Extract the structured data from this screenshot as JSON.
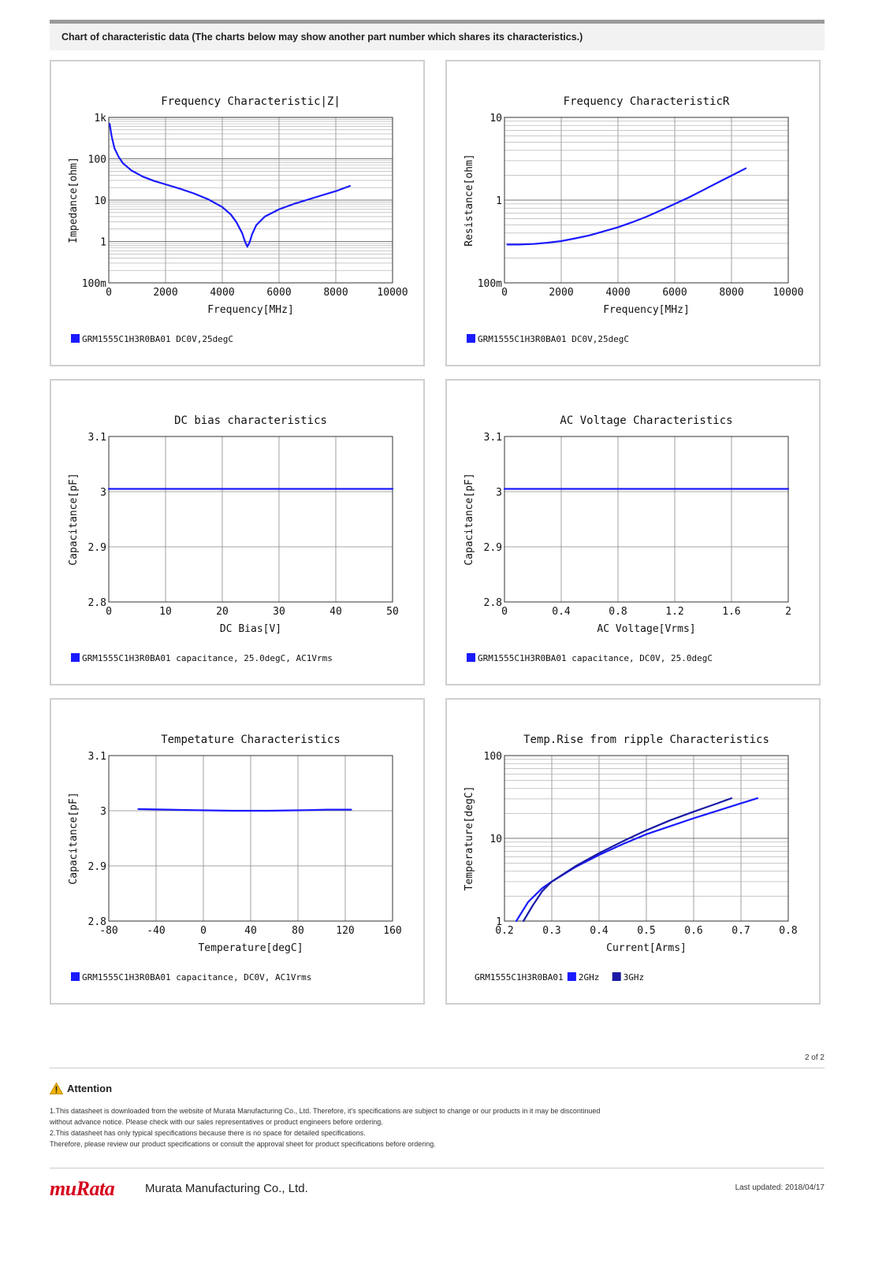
{
  "header": {
    "title": "Chart of characteristic data (The charts below may show another part number which shares its characteristics.)"
  },
  "colors": {
    "series1": "#1a1aff",
    "series2": "#1a1aa6",
    "border": "#cfcfcf",
    "logo": "#d6001c"
  },
  "chart_data": [
    {
      "type": "line",
      "title": "Frequency  Characteristic|Z|",
      "xlabel": "Frequency[MHz]",
      "ylabel": "Impedance[ohm]",
      "xlim": [
        0,
        10000
      ],
      "ylim": [
        0.1,
        1000
      ],
      "yscale": "log",
      "xticks": [
        0,
        2000,
        4000,
        6000,
        8000,
        10000
      ],
      "xtick_labels": [
        "0",
        "2000",
        "4000",
        "6000",
        "8000",
        "10000"
      ],
      "yticks": [
        0.1,
        1,
        10,
        100,
        1000
      ],
      "ytick_labels": [
        "100m",
        "1",
        "10",
        "100",
        "1k"
      ],
      "grid": true,
      "legend": [
        {
          "label": "GRM1555C1H3R0BA01 DC0V,25degC",
          "color": "#1a1aff"
        }
      ],
      "series": [
        {
          "color": "#1a1aff",
          "points": [
            [
              30,
              700
            ],
            [
              100,
              350
            ],
            [
              200,
              180
            ],
            [
              350,
              110
            ],
            [
              500,
              78
            ],
            [
              800,
              52
            ],
            [
              1200,
              37
            ],
            [
              1600,
              29
            ],
            [
              2000,
              24
            ],
            [
              2500,
              19
            ],
            [
              3000,
              14.5
            ],
            [
              3500,
              10.5
            ],
            [
              4000,
              6.8
            ],
            [
              4300,
              4.5
            ],
            [
              4500,
              2.9
            ],
            [
              4700,
              1.6
            ],
            [
              4800,
              1.0
            ],
            [
              4880,
              0.75
            ],
            [
              4960,
              0.95
            ],
            [
              5050,
              1.5
            ],
            [
              5200,
              2.5
            ],
            [
              5500,
              4.0
            ],
            [
              6000,
              6.0
            ],
            [
              6500,
              8.0
            ],
            [
              7000,
              10.2
            ],
            [
              7500,
              13.0
            ],
            [
              8000,
              16.5
            ],
            [
              8500,
              22
            ]
          ]
        }
      ]
    },
    {
      "type": "line",
      "title": "Frequency  CharacteristicR",
      "xlabel": "Frequency[MHz]",
      "ylabel": "Resistance[ohm]",
      "xlim": [
        0,
        10000
      ],
      "ylim": [
        0.1,
        10
      ],
      "yscale": "log",
      "xticks": [
        0,
        2000,
        4000,
        6000,
        8000,
        10000
      ],
      "xtick_labels": [
        "0",
        "2000",
        "4000",
        "6000",
        "8000",
        "10000"
      ],
      "yticks": [
        0.1,
        1,
        10
      ],
      "ytick_labels": [
        "100m",
        "1",
        "10"
      ],
      "grid": true,
      "legend": [
        {
          "label": "GRM1555C1H3R0BA01 DC0V,25degC",
          "color": "#1a1aff"
        }
      ],
      "series": [
        {
          "color": "#1a1aff",
          "points": [
            [
              100,
              0.29
            ],
            [
              500,
              0.29
            ],
            [
              1000,
              0.295
            ],
            [
              1500,
              0.305
            ],
            [
              2000,
              0.32
            ],
            [
              2500,
              0.345
            ],
            [
              3000,
              0.375
            ],
            [
              3500,
              0.42
            ],
            [
              4000,
              0.47
            ],
            [
              4500,
              0.54
            ],
            [
              5000,
              0.63
            ],
            [
              5500,
              0.75
            ],
            [
              6000,
              0.9
            ],
            [
              6500,
              1.08
            ],
            [
              7000,
              1.32
            ],
            [
              7500,
              1.62
            ],
            [
              8000,
              1.98
            ],
            [
              8500,
              2.42
            ]
          ]
        }
      ]
    },
    {
      "type": "line",
      "title": "DC bias characteristics",
      "xlabel": "DC Bias[V]",
      "ylabel": "Capacitance[pF]",
      "xlim": [
        0,
        50
      ],
      "ylim": [
        2.8,
        3.1
      ],
      "xticks": [
        0,
        10,
        20,
        30,
        40,
        50
      ],
      "xtick_labels": [
        "0",
        "10",
        "20",
        "30",
        "40",
        "50"
      ],
      "yticks": [
        2.8,
        2.9,
        3,
        3.1
      ],
      "ytick_labels": [
        "2.8",
        "2.9",
        "3",
        "3.1"
      ],
      "grid": true,
      "legend": [
        {
          "label": "GRM1555C1H3R0BA01 capacitance, 25.0degC, AC1Vrms",
          "color": "#1a1aff"
        }
      ],
      "series": [
        {
          "color": "#1a1aff",
          "points": [
            [
              0,
              3.005
            ],
            [
              50,
              3.005
            ]
          ]
        }
      ]
    },
    {
      "type": "line",
      "title": "AC Voltage Characteristics",
      "xlabel": "AC Voltage[Vrms]",
      "ylabel": "Capacitance[pF]",
      "xlim": [
        0,
        2
      ],
      "ylim": [
        2.8,
        3.1
      ],
      "xticks": [
        0,
        0.4,
        0.8,
        1.2,
        1.6,
        2
      ],
      "xtick_labels": [
        "0",
        "0.4",
        "0.8",
        "1.2",
        "1.6",
        "2"
      ],
      "yticks": [
        2.8,
        2.9,
        3,
        3.1
      ],
      "ytick_labels": [
        "2.8",
        "2.9",
        "3",
        "3.1"
      ],
      "grid": true,
      "legend": [
        {
          "label": "GRM1555C1H3R0BA01 capacitance, DC0V, 25.0degC",
          "color": "#1a1aff"
        }
      ],
      "series": [
        {
          "color": "#1a1aff",
          "points": [
            [
              0,
              3.005
            ],
            [
              2,
              3.005
            ]
          ]
        }
      ]
    },
    {
      "type": "line",
      "title": "Tempetature  Characteristics",
      "xlabel": "Temperature[degC]",
      "ylabel": "Capacitance[pF]",
      "xlim": [
        -80,
        160
      ],
      "ylim": [
        2.8,
        3.1
      ],
      "xticks": [
        -80,
        -40,
        0,
        40,
        80,
        120,
        160
      ],
      "xtick_labels": [
        "-80",
        "-40",
        "0",
        "40",
        "80",
        "120",
        "160"
      ],
      "yticks": [
        2.8,
        2.9,
        3,
        3.1
      ],
      "ytick_labels": [
        "2.8",
        "2.9",
        "3",
        "3.1"
      ],
      "grid": true,
      "legend": [
        {
          "label": "GRM1555C1H3R0BA01 capacitance, DC0V, AC1Vrms",
          "color": "#1a1aff"
        }
      ],
      "series": [
        {
          "color": "#1a1aff",
          "points": [
            [
              -55,
              3.003
            ],
            [
              -30,
              3.002
            ],
            [
              -5,
              3.001
            ],
            [
              25,
              3.0
            ],
            [
              55,
              3.0
            ],
            [
              85,
              3.001
            ],
            [
              105,
              3.002
            ],
            [
              125,
              3.002
            ]
          ]
        }
      ]
    },
    {
      "type": "line",
      "title": "Temp.Rise from ripple Characteristics",
      "xlabel": "Current[Arms]",
      "ylabel": "Temperature[degC]",
      "xlim": [
        0.2,
        0.8
      ],
      "ylim": [
        1,
        100
      ],
      "yscale": "log",
      "xticks": [
        0.2,
        0.3,
        0.4,
        0.5,
        0.6,
        0.7,
        0.8
      ],
      "xtick_labels": [
        "0.2",
        "0.3",
        "0.4",
        "0.5",
        "0.6",
        "0.7",
        "0.8"
      ],
      "yticks": [
        1,
        10,
        100
      ],
      "ytick_labels": [
        "1",
        "10",
        "100"
      ],
      "grid": true,
      "legend_prefix": "GRM1555C1H3R0BA01",
      "legend": [
        {
          "label": "2GHz",
          "color": "#1a1aff"
        },
        {
          "label": "3GHz",
          "color": "#1a1aa6"
        }
      ],
      "series": [
        {
          "name": "2GHz",
          "color": "#1a1aff",
          "points": [
            [
              0.225,
              1.0
            ],
            [
              0.25,
              1.7
            ],
            [
              0.28,
              2.5
            ],
            [
              0.3,
              3.0
            ],
            [
              0.35,
              4.5
            ],
            [
              0.4,
              6.3
            ],
            [
              0.45,
              8.5
            ],
            [
              0.5,
              11.2
            ],
            [
              0.55,
              14.0
            ],
            [
              0.6,
              17.5
            ],
            [
              0.65,
              21.5
            ],
            [
              0.7,
              26.5
            ],
            [
              0.735,
              30.5
            ]
          ]
        },
        {
          "name": "3GHz",
          "color": "#1a1aa6",
          "points": [
            [
              0.24,
              1.0
            ],
            [
              0.26,
              1.55
            ],
            [
              0.28,
              2.3
            ],
            [
              0.3,
              3.0
            ],
            [
              0.35,
              4.6
            ],
            [
              0.4,
              6.6
            ],
            [
              0.45,
              9.2
            ],
            [
              0.5,
              12.5
            ],
            [
              0.55,
              16.5
            ],
            [
              0.6,
              21.0
            ],
            [
              0.65,
              26.5
            ],
            [
              0.68,
              30.5
            ]
          ]
        }
      ]
    }
  ],
  "footer": {
    "page_number": "2 of 2",
    "attention_title": "Attention",
    "notes": [
      "1.This datasheet is downloaded from the website of Murata Manufacturing Co., Ltd. Therefore, it's specifications are subject to change or our products in it may be discontinued",
      "without advance notice. Please check with our sales representatives or product engineers before ordering.",
      "2.This datasheet has only typical specifications because there is no space for detailed specifications.",
      "Therefore, please review our product specifications or consult the approval sheet for product specifications before ordering."
    ],
    "logo_text": "muRata",
    "company": "Murata Manufacturing Co., Ltd.",
    "last_updated": "Last updated: 2018/04/17"
  }
}
